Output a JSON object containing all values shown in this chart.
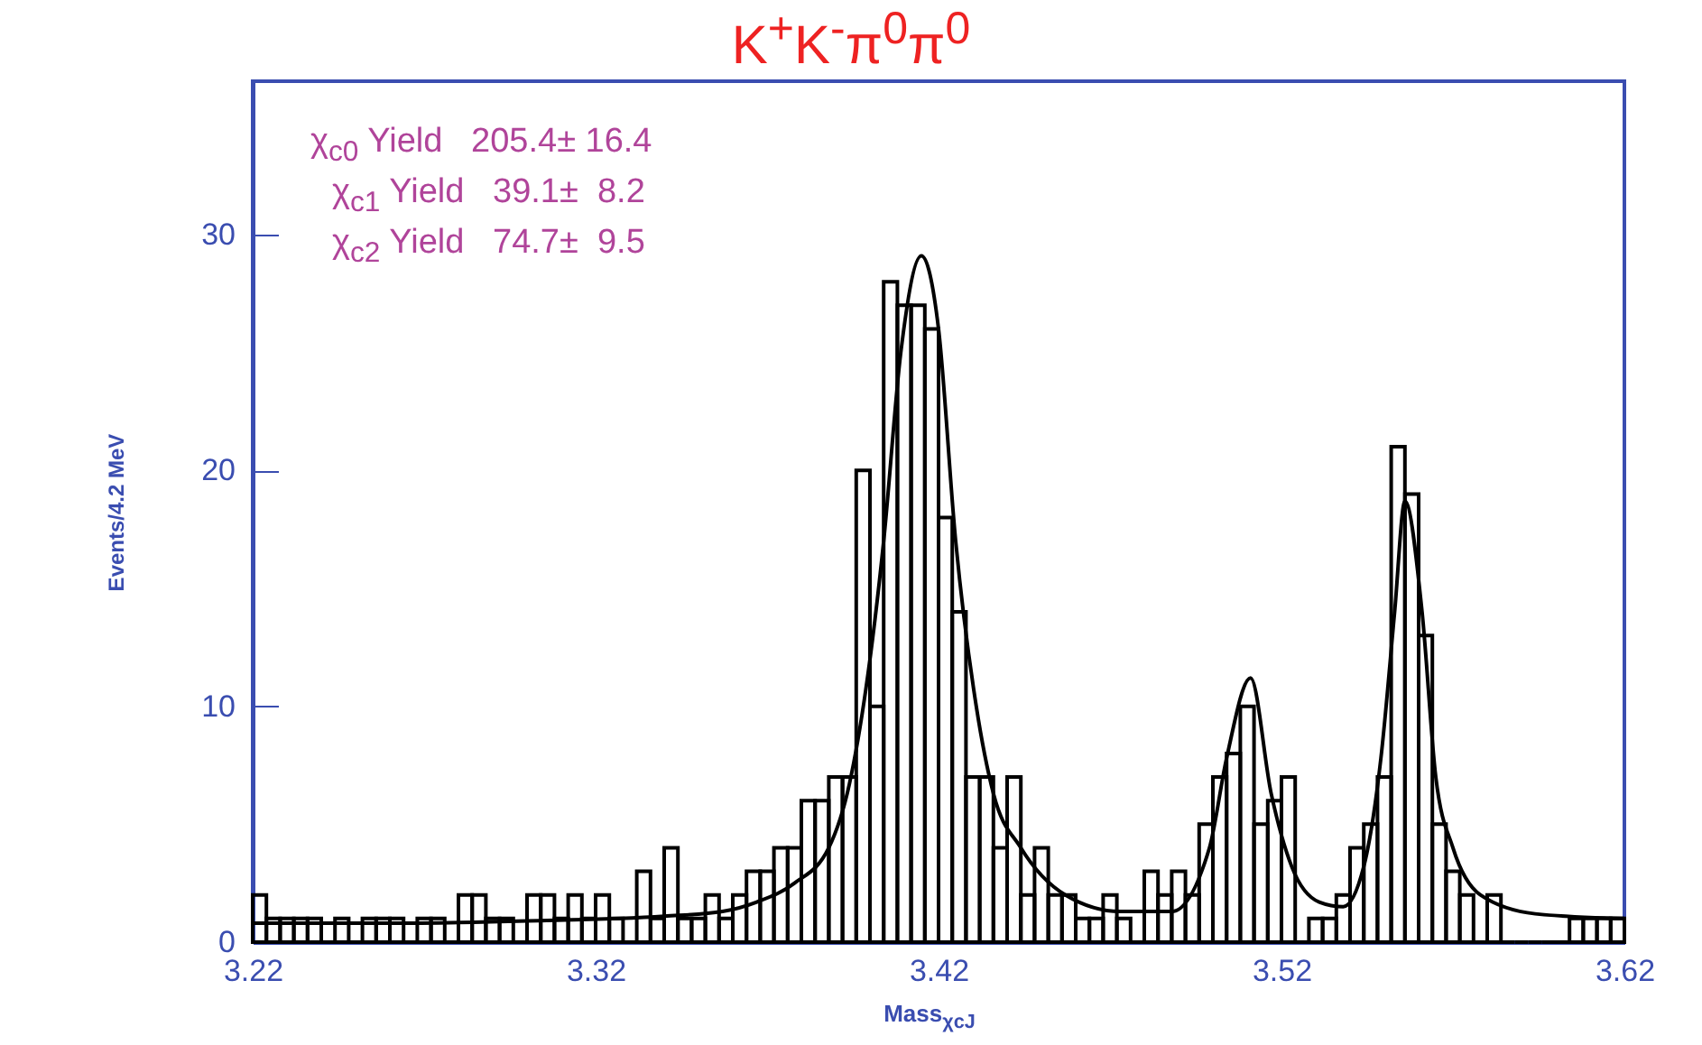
{
  "chart_data": {
    "type": "histogram",
    "title": "K$^{+}$K$^{-}$π$^{0}$π$^{0}$",
    "xlabel": "Mass$_{χcJ}$",
    "ylabel": "Events/4.2 MeV",
    "annotations": [
      "χ$_{c0}$ Yield   205.4± 16.4",
      "χ$_{c1}$ Yield   39.1±  8.2",
      "χ$_{c2}$ Yield   74.7±  9.5"
    ],
    "bins": [
      3.22,
      3.224,
      3.228,
      3.232,
      3.236,
      3.24,
      3.244,
      3.248,
      3.252,
      3.256,
      3.26,
      3.264,
      3.268,
      3.272,
      3.276,
      3.28,
      3.284,
      3.288,
      3.292,
      3.296,
      3.3,
      3.304,
      3.308,
      3.312,
      3.316,
      3.32,
      3.324,
      3.328,
      3.332,
      3.336,
      3.34,
      3.344,
      3.348,
      3.352,
      3.356,
      3.36,
      3.364,
      3.368,
      3.372,
      3.376,
      3.38,
      3.384,
      3.388,
      3.392,
      3.396,
      3.4,
      3.404,
      3.408,
      3.412,
      3.416,
      3.42,
      3.424,
      3.428,
      3.432,
      3.436,
      3.44,
      3.444,
      3.448,
      3.452,
      3.456,
      3.46,
      3.464,
      3.468,
      3.472,
      3.476,
      3.48,
      3.484,
      3.488,
      3.492,
      3.496,
      3.5,
      3.504,
      3.508,
      3.512,
      3.516,
      3.52,
      3.524,
      3.528,
      3.532,
      3.536,
      3.54,
      3.544,
      3.548,
      3.552,
      3.556,
      3.56,
      3.564,
      3.568,
      3.572,
      3.576,
      3.58,
      3.584,
      3.588,
      3.592,
      3.596,
      3.6,
      3.604,
      3.608,
      3.612,
      3.616,
      3.62
    ],
    "values": [
      2,
      1,
      1,
      1,
      1,
      0,
      1,
      0,
      1,
      1,
      1,
      0,
      1,
      1,
      0,
      2,
      2,
      1,
      1,
      0,
      2,
      2,
      1,
      2,
      1,
      2,
      1,
      0,
      3,
      1,
      4,
      1,
      1,
      2,
      1,
      2,
      3,
      3,
      4,
      4,
      6,
      6,
      7,
      7,
      20,
      10,
      28,
      27,
      27,
      26,
      18,
      14,
      7,
      7,
      4,
      7,
      2,
      4,
      2,
      2,
      1,
      1,
      2,
      1,
      0,
      3,
      2,
      3,
      2,
      5,
      7,
      8,
      10,
      5,
      6,
      7,
      0,
      1,
      1,
      2,
      4,
      5,
      7,
      21,
      19,
      13,
      5,
      3,
      2,
      0,
      2,
      0,
      0,
      0,
      0,
      0,
      1,
      1,
      1,
      1
    ],
    "color": "#000000",
    "series": [
      {
        "type": "line",
        "color": "#000000",
        "x": [
          3.22,
          3.26,
          3.3,
          3.34,
          3.357,
          3.367,
          3.378,
          3.388,
          3.394,
          3.404,
          3.409,
          3.415,
          3.42,
          3.425,
          3.431,
          3.436,
          3.444,
          3.457,
          3.473,
          3.488,
          3.499,
          3.504,
          3.511,
          3.517,
          3.523,
          3.531,
          3.538,
          3.544,
          3.549,
          3.553,
          3.556,
          3.561,
          3.565,
          3.57,
          3.578,
          3.594,
          3.62
        ],
        "values": [
          0.8,
          0.8,
          0.9,
          1.1,
          1.3,
          1.7,
          2.5,
          4,
          6.7,
          17,
          25,
          29.1,
          26,
          17,
          10,
          6.3,
          4,
          2,
          1.3,
          1.3,
          4,
          7.8,
          11.2,
          6.3,
          3.2,
          1.7,
          1.5,
          3.2,
          7.8,
          14,
          18.7,
          14,
          7,
          4,
          2,
          1.2,
          1.0
        ]
      }
    ],
    "xlim": [
      3.22,
      3.62
    ],
    "xticks": [
      3.22,
      3.32,
      3.42,
      3.52,
      3.62
    ],
    "ylim": [
      0,
      36.5
    ],
    "yticks": [
      0,
      10,
      20,
      30
    ],
    "grid": false
  }
}
